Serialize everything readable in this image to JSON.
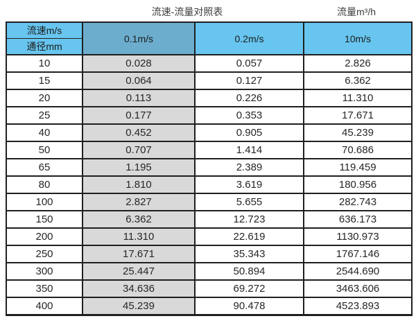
{
  "titles": {
    "left": "流速-流量对照表",
    "right": "流量m³/h"
  },
  "table": {
    "corner_top": "流速m/s",
    "corner_bottom": "通径mm",
    "velocity_headers": [
      "0.1m/s",
      "0.2m/s",
      "10m/s"
    ],
    "rows": [
      [
        "10",
        "0.028",
        "0.057",
        "2.826"
      ],
      [
        "15",
        "0.064",
        "0.127",
        "6.362"
      ],
      [
        "20",
        "0.113",
        "0.226",
        "11.310"
      ],
      [
        "25",
        "0.177",
        "0.353",
        "17.671"
      ],
      [
        "40",
        "0.452",
        "0.905",
        "45.239"
      ],
      [
        "50",
        "0.707",
        "1.414",
        "70.686"
      ],
      [
        "65",
        "1.195",
        "2.389",
        "119.459"
      ],
      [
        "80",
        "1.810",
        "3.619",
        "180.956"
      ],
      [
        "100",
        "2.827",
        "5.655",
        "282.743"
      ],
      [
        "150",
        "6.362",
        "12.723",
        "636.173"
      ],
      [
        "200",
        "11.310",
        "22.619",
        "1130.973"
      ],
      [
        "250",
        "17.671",
        "35.343",
        "1767.146"
      ],
      [
        "300",
        "25.447",
        "50.894",
        "2544.690"
      ],
      [
        "350",
        "34.636",
        "69.272",
        "3463.606"
      ],
      [
        "400",
        "45.239",
        "90.478",
        "4523.893"
      ]
    ]
  },
  "colors": {
    "header_light_blue": "#67c5ef",
    "header_steel_blue": "#6cadce",
    "shaded_column_grey": "#d9d9d9",
    "border": "#1f1f1f",
    "text": "#262626"
  },
  "chart_data": {
    "type": "table",
    "title": "流速-流量对照表",
    "unit_label": "流量m³/h",
    "columns": [
      "通径mm",
      "0.1m/s",
      "0.2m/s",
      "10m/s"
    ],
    "rows": [
      [
        10,
        0.028,
        0.057,
        2.826
      ],
      [
        15,
        0.064,
        0.127,
        6.362
      ],
      [
        20,
        0.113,
        0.226,
        11.31
      ],
      [
        25,
        0.177,
        0.353,
        17.671
      ],
      [
        40,
        0.452,
        0.905,
        45.239
      ],
      [
        50,
        0.707,
        1.414,
        70.686
      ],
      [
        65,
        1.195,
        2.389,
        119.459
      ],
      [
        80,
        1.81,
        3.619,
        180.956
      ],
      [
        100,
        2.827,
        5.655,
        282.743
      ],
      [
        150,
        6.362,
        12.723,
        636.173
      ],
      [
        200,
        11.31,
        22.619,
        1130.973
      ],
      [
        250,
        17.671,
        35.343,
        1767.146
      ],
      [
        300,
        25.447,
        50.894,
        2544.69
      ],
      [
        350,
        34.636,
        69.272,
        3463.606
      ],
      [
        400,
        45.239,
        90.478,
        4523.893
      ]
    ]
  }
}
